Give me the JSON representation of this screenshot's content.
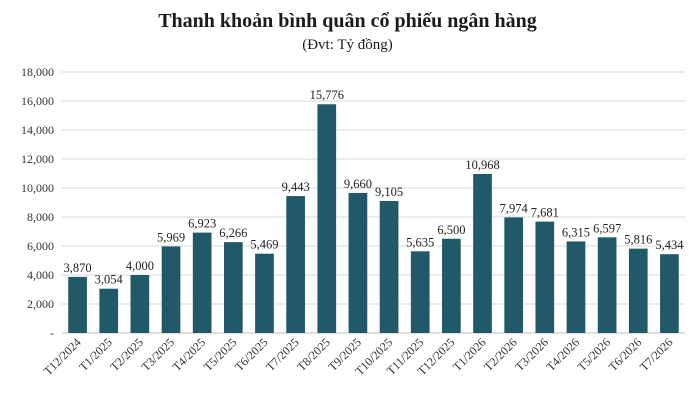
{
  "chart_data": {
    "type": "bar",
    "title": "Thanh khoản bình quân cổ phiếu ngân hàng",
    "subtitle": "(Đvt: Tỷ đồng)",
    "categories": [
      "T12/2024",
      "T1/2025",
      "T2/2025",
      "T3/2025",
      "T4/2025",
      "T5/2025",
      "T6/2025",
      "T7/2025",
      "T8/2025",
      "T9/2025",
      "T10/2025",
      "T11/2025",
      "T12/2025",
      "T1/2026",
      "T2/2026",
      "T3/2026",
      "T4/2026",
      "T5/2026",
      "T6/2026",
      "T7/2026"
    ],
    "values": [
      3870,
      3054,
      4000,
      5969,
      6923,
      6266,
      5469,
      9443,
      15776,
      9660,
      9105,
      5635,
      6500,
      10968,
      7974,
      7681,
      6315,
      6597,
      5816,
      5434
    ],
    "value_labels": [
      "3,870",
      "3,054",
      "4,000",
      "5,969",
      "6,923",
      "6,266",
      "5,469",
      "9,443",
      "15,776",
      "9,660",
      "9,105",
      "5,635",
      "6,500",
      "10,968",
      "7,974",
      "7,681",
      "6,315",
      "6,597",
      "5,816",
      "5,434"
    ],
    "y_ticks": [
      0,
      2000,
      4000,
      6000,
      8000,
      10000,
      12000,
      14000,
      16000,
      18000
    ],
    "y_tick_labels": [
      "-",
      "2,000",
      "4,000",
      "6,000",
      "8,000",
      "10,000",
      "12,000",
      "14,000",
      "16,000",
      "18,000"
    ],
    "ylim": [
      0,
      18000
    ],
    "grid": true,
    "legend": "none",
    "bar_color": "#215968",
    "grid_color": "#d9d9d9"
  }
}
